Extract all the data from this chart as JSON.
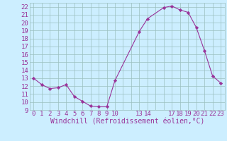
{
  "x": [
    0,
    1,
    2,
    3,
    4,
    5,
    6,
    7,
    8,
    9,
    10,
    13,
    14,
    16,
    17,
    18,
    19,
    20,
    21,
    22,
    23
  ],
  "y": [
    13.0,
    12.2,
    11.7,
    11.8,
    12.2,
    10.7,
    10.1,
    9.5,
    9.4,
    9.4,
    12.7,
    18.9,
    20.5,
    21.9,
    22.1,
    21.6,
    21.3,
    19.4,
    16.5,
    13.3,
    12.4
  ],
  "line_color": "#993399",
  "marker_color": "#993399",
  "bg_color": "#cceeff",
  "grid_color": "#9bbfbf",
  "tick_color": "#993399",
  "xlabel": "Windchill (Refroidissement éolien,°C)",
  "xlabel_color": "#993399",
  "ylim": [
    9,
    22.5
  ],
  "xlim": [
    -0.5,
    23.5
  ],
  "yticks": [
    9,
    10,
    11,
    12,
    13,
    14,
    15,
    16,
    17,
    18,
    19,
    20,
    21,
    22
  ],
  "xticks": [
    0,
    1,
    2,
    3,
    4,
    5,
    6,
    7,
    8,
    9,
    10,
    13,
    14,
    17,
    18,
    19,
    20,
    21,
    22,
    23
  ],
  "xtick_labels": [
    "0",
    "1",
    "2",
    "3",
    "4",
    "5",
    "6",
    "7",
    "8",
    "9",
    "10",
    "13",
    "14",
    "17",
    "18",
    "19",
    "20",
    "21",
    "22",
    "23"
  ],
  "font_size": 6.5,
  "label_font_size": 7
}
